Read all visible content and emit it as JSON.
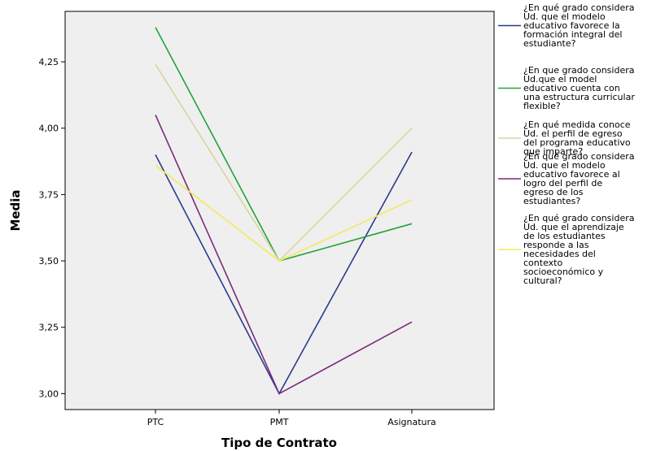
{
  "chart_data": {
    "type": "line",
    "title": "",
    "xlabel": "Tipo de Contrato",
    "ylabel": "Media",
    "categories": [
      "PTC",
      "PMT",
      "Asignatura"
    ],
    "ylim": [
      2.94,
      4.44
    ],
    "yticks": [
      3.0,
      3.25,
      3.5,
      3.75,
      4.0,
      4.25
    ],
    "ytick_labels": [
      "3,00",
      "3,25",
      "3,50",
      "3,75",
      "4,00",
      "4,25"
    ],
    "grid": false,
    "legend_position": "right",
    "series": [
      {
        "name": "¿En qué grado considera Ud. que el modelo educativo favorece la formación integral del estudiante?",
        "legend_lines": [
          "¿En qué grado considera",
          "Ud. que el modelo",
          "educativo favorece la",
          "formación integral del",
          "estudiante?"
        ],
        "color": "#2b3a8c",
        "values": [
          3.9,
          3.0,
          3.91
        ]
      },
      {
        "name": "¿En que grado considera Ud.que el model educativo cuenta con una estructura curricular flexible?",
        "legend_lines": [
          "¿En que grado considera",
          "Ud.que el model",
          "educativo cuenta con",
          "una estructura curricular",
          "flexible?"
        ],
        "color": "#22a33a",
        "values": [
          4.38,
          3.5,
          3.64
        ]
      },
      {
        "name": "¿En qué medida conoce Ud. el perfil de egreso del programa educativo que imparte?",
        "legend_lines": [
          "¿En qué medida conoce",
          "Ud. el perfil de egreso",
          "del programa educativo",
          "que imparte?"
        ],
        "color": "#d9d4a0",
        "values": [
          4.24,
          3.5,
          4.0
        ]
      },
      {
        "name": "¿En qué grado considera Ud. que el modelo educativo favorece al logro del perfil de egreso de los estudiantes?",
        "legend_lines": [
          "¿En qué grado considera",
          "Ud. que el modelo",
          "educativo favorece al",
          "logro del perfil de",
          "egreso de los",
          "estudiantes?"
        ],
        "color": "#7a2a7a",
        "values": [
          4.05,
          3.0,
          3.27
        ]
      },
      {
        "name": "¿En qué grado considera Ud. que el aprendizaje de los estudiantes responde a las necesidades del contexto socioeconómico y cultural?",
        "legend_lines": [
          "¿En qué grado considera",
          "Ud. que el aprendizaje",
          "de los estudiantes",
          "responde a las",
          "necesidades del",
          "contexto",
          "socioeconómico y",
          "cultural?"
        ],
        "color": "#f2ea5a",
        "values": [
          3.86,
          3.5,
          3.73
        ]
      }
    ]
  }
}
